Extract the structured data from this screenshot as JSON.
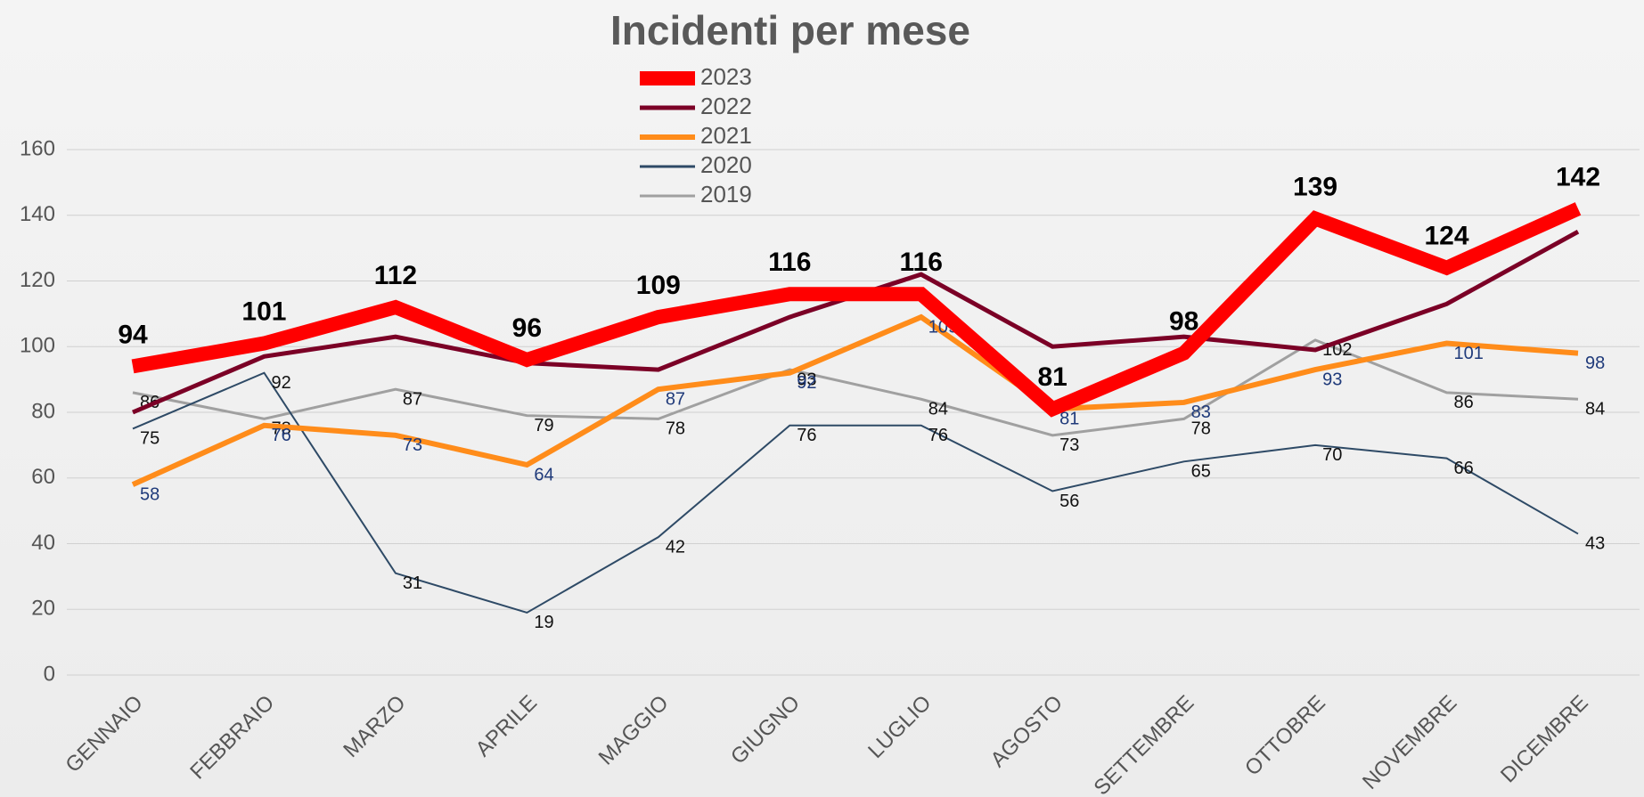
{
  "chart_data": {
    "type": "line",
    "title": "Incidenti per mese",
    "categories": [
      "GENNAIO",
      "FEBBRAIO",
      "MARZO",
      "APRILE",
      "MAGGIO",
      "GIUGNO",
      "LUGLIO",
      "AGOSTO",
      "SETTEMBRE",
      "OTTOBRE",
      "NOVEMBRE",
      "DICEMBRE"
    ],
    "series": [
      {
        "name": "2023",
        "color": "#ff0000",
        "width": 16,
        "data_labels": true,
        "values": [
          94,
          101,
          112,
          96,
          109,
          116,
          116,
          81,
          98,
          139,
          124,
          142
        ]
      },
      {
        "name": "2022",
        "color": "#7b0026",
        "width": 5,
        "data_labels": false,
        "values": [
          80,
          97,
          103,
          95,
          93,
          109,
          122,
          100,
          103,
          99,
          113,
          135
        ]
      },
      {
        "name": "2021",
        "color": "#ff8c1a",
        "width": 6,
        "data_labels": true,
        "values": [
          58,
          76,
          73,
          64,
          87,
          92,
          109,
          81,
          83,
          93,
          101,
          98
        ]
      },
      {
        "name": "2020",
        "color": "#2e4a66",
        "width": 2,
        "data_labels": true,
        "values": [
          75,
          92,
          31,
          19,
          42,
          76,
          76,
          56,
          65,
          70,
          66,
          43
        ]
      },
      {
        "name": "2019",
        "color": "#a0a0a0",
        "width": 3,
        "data_labels": true,
        "values": [
          86,
          78,
          87,
          79,
          78,
          93,
          84,
          73,
          78,
          102,
          86,
          84
        ]
      }
    ],
    "ylim": [
      0,
      160
    ],
    "yticks": [
      0,
      20,
      40,
      60,
      80,
      100,
      120,
      140,
      160
    ],
    "grid": true,
    "legend": "top"
  }
}
